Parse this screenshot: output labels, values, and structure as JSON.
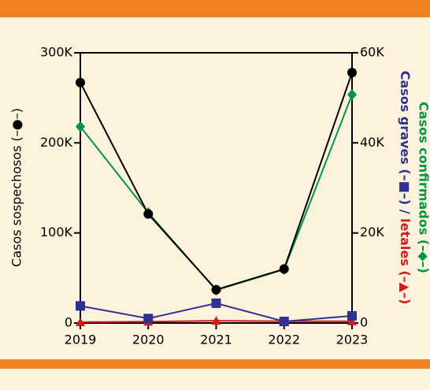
{
  "chart_data": {
    "type": "line",
    "categories": [
      "2019",
      "2020",
      "2021",
      "2022",
      "2023"
    ],
    "ylabel": "Casos sospechosos (–●–)",
    "y2label_parts": [
      {
        "text": "Casos graves (–■–) /",
        "color": "#2e3192"
      },
      {
        "text": "letales (–▲–)",
        "color": "#d7191c"
      }
    ],
    "y2label_outer": {
      "text": "Casos confirmados (–◆–)",
      "color": "#009444"
    },
    "ylim": [
      0,
      300000
    ],
    "yticks": [
      {
        "value": 0,
        "label": "0"
      },
      {
        "value": 100000,
        "label": "100K"
      },
      {
        "value": 200000,
        "label": "200K"
      },
      {
        "value": 300000,
        "label": "300K"
      }
    ],
    "y2lim": [
      0,
      60000
    ],
    "y2ticks": [
      {
        "value": 0,
        "label": "0"
      },
      {
        "value": 20000,
        "label": "20K"
      },
      {
        "value": 40000,
        "label": "40K"
      },
      {
        "value": 60000,
        "label": "60K"
      }
    ],
    "series": [
      {
        "color": "#d7191c",
        "marker": "triangle",
        "axis": "y2",
        "values": [
          200,
          300,
          500,
          400,
          400
        ]
      },
      {
        "color": "#2e3192",
        "marker": "square",
        "axis": "y2",
        "values": [
          3800,
          1000,
          4400,
          350,
          1600
        ]
      },
      {
        "color": "#009444",
        "marker": "diamond",
        "axis": "y2",
        "values": [
          43600,
          24500,
          7300,
          11900,
          50700
        ]
      },
      {
        "color": "#000000",
        "marker": "circle",
        "axis": "y",
        "values": [
          267000,
          121000,
          37000,
          60000,
          278000
        ]
      }
    ]
  }
}
